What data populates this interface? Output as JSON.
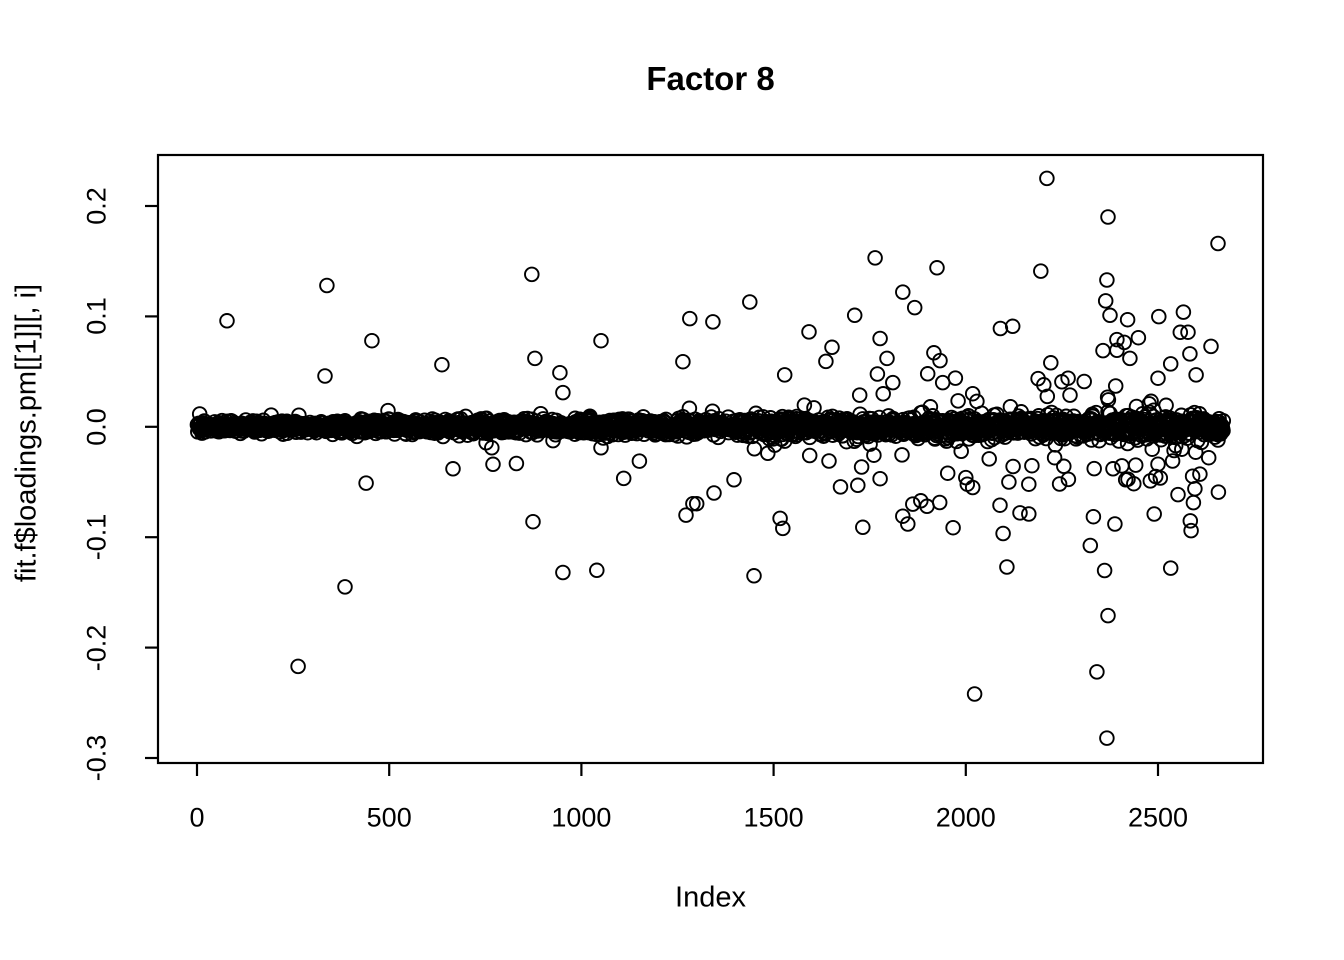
{
  "page": {
    "background_color": "#ffffff",
    "foreground_color": "#000000"
  },
  "chart_data": {
    "type": "scatter",
    "title": "Factor 8",
    "xlabel": "Index",
    "ylabel": "fit.f$loadings.pm[[1]][, i]",
    "x_ticks": [
      0,
      500,
      1000,
      1500,
      2000,
      2500
    ],
    "x_tick_labels": [
      "0",
      "500",
      "1000",
      "1500",
      "2000",
      "2500"
    ],
    "y_ticks": [
      0.2,
      0.1,
      0.0,
      -0.1,
      -0.2,
      -0.3
    ],
    "y_tick_labels": [
      "0.2",
      "0.1",
      "0.0",
      "-0.1",
      "-0.2",
      "-0.3"
    ],
    "xlim": [
      -101,
      2773
    ],
    "ylim": [
      -0.304,
      0.246
    ],
    "grid": false,
    "legend": null,
    "n_points": 2670,
    "marker": {
      "shape": "open-circle",
      "radius_px": 6.8,
      "stroke_px": 1.9,
      "color": "#000000"
    },
    "dense_band": {
      "description": "Tight horizontal band of ~2670 open circles centered at y=0 spanning index 1..2670; spread grows slightly with index, with increasingly frequent moderate deviations (|y| 0.02-0.12) in the right half.",
      "center_y": 0.0,
      "sd_base": 0.0025,
      "sd_growth": 0.003,
      "moderate_prob_base": 0.004,
      "moderate_prob_scale": 0.1,
      "moderate_prob_power": 2.0,
      "moderate_sd_base": 0.018,
      "moderate_sd_growth": 0.034,
      "moderate_clamp": 0.16,
      "seed": 42
    },
    "outliers": [
      [
        78,
        0.096
      ],
      [
        338,
        0.128
      ],
      [
        333,
        0.046
      ],
      [
        455,
        0.078
      ],
      [
        871,
        0.138
      ],
      [
        879,
        0.062
      ],
      [
        944,
        0.049
      ],
      [
        952,
        0.031
      ],
      [
        1051,
        0.078
      ],
      [
        1264,
        0.059
      ],
      [
        1282,
        0.098
      ],
      [
        1342,
        0.095
      ],
      [
        1438,
        0.113
      ],
      [
        1529,
        0.047
      ],
      [
        1592,
        0.086
      ],
      [
        1652,
        0.072
      ],
      [
        1711,
        0.101
      ],
      [
        1764,
        0.153
      ],
      [
        1777,
        0.08
      ],
      [
        1795,
        0.062
      ],
      [
        1810,
        0.04
      ],
      [
        1836,
        0.122
      ],
      [
        1867,
        0.108
      ],
      [
        1901,
        0.048
      ],
      [
        1917,
        0.067
      ],
      [
        1925,
        0.144
      ],
      [
        1933,
        0.06
      ],
      [
        1940,
        0.04
      ],
      [
        2018,
        0.03
      ],
      [
        2029,
        0.023
      ],
      [
        2090,
        0.089
      ],
      [
        2122,
        0.091
      ],
      [
        2195,
        0.141
      ],
      [
        2203,
        0.038
      ],
      [
        2211,
        0.225
      ],
      [
        2221,
        0.058
      ],
      [
        2266,
        0.044
      ],
      [
        2308,
        0.041
      ],
      [
        2357,
        0.069
      ],
      [
        2364,
        0.114
      ],
      [
        2367,
        0.133
      ],
      [
        2370,
        0.19
      ],
      [
        2375,
        0.101
      ],
      [
        2390,
        0.037
      ],
      [
        2393,
        0.079
      ],
      [
        2421,
        0.097
      ],
      [
        2427,
        0.062
      ],
      [
        2500,
        0.044
      ],
      [
        2533,
        0.057
      ],
      [
        2583,
        0.066
      ],
      [
        2599,
        0.047
      ],
      [
        2656,
        0.166
      ],
      [
        263,
        -0.217
      ],
      [
        385,
        -0.145
      ],
      [
        440,
        -0.051
      ],
      [
        666,
        -0.038
      ],
      [
        767,
        -0.019
      ],
      [
        770,
        -0.034
      ],
      [
        874,
        -0.086
      ],
      [
        952,
        -0.132
      ],
      [
        1040,
        -0.13
      ],
      [
        1051,
        -0.019
      ],
      [
        1272,
        -0.08
      ],
      [
        1345,
        -0.06
      ],
      [
        1397,
        -0.048
      ],
      [
        1449,
        -0.135
      ],
      [
        1485,
        -0.024
      ],
      [
        1517,
        -0.083
      ],
      [
        1524,
        -0.092
      ],
      [
        1594,
        -0.026
      ],
      [
        1644,
        -0.031
      ],
      [
        1719,
        -0.053
      ],
      [
        1732,
        -0.091
      ],
      [
        1777,
        -0.047
      ],
      [
        1836,
        -0.081
      ],
      [
        1849,
        -0.088
      ],
      [
        1862,
        -0.07
      ],
      [
        1883,
        -0.067
      ],
      [
        1899,
        -0.072
      ],
      [
        1953,
        -0.042
      ],
      [
        2000,
        -0.046
      ],
      [
        2018,
        -0.055
      ],
      [
        2023,
        -0.242
      ],
      [
        2089,
        -0.071
      ],
      [
        2107,
        -0.127
      ],
      [
        2112,
        -0.05
      ],
      [
        2123,
        -0.036
      ],
      [
        2141,
        -0.078
      ],
      [
        2164,
        -0.052
      ],
      [
        2164,
        -0.079
      ],
      [
        2341,
        -0.222
      ],
      [
        2367,
        -0.282
      ],
      [
        2370,
        -0.171
      ],
      [
        2383,
        -0.038
      ],
      [
        2388,
        -0.088
      ],
      [
        2416,
        -0.048
      ],
      [
        2490,
        -0.079
      ],
      [
        2494,
        -0.045
      ],
      [
        2533,
        -0.128
      ],
      [
        2538,
        -0.031
      ],
      [
        2546,
        -0.017
      ],
      [
        2586,
        -0.094
      ],
      [
        2598,
        -0.023
      ],
      [
        2632,
        -0.028
      ],
      [
        2656,
        -0.012
      ]
    ]
  }
}
